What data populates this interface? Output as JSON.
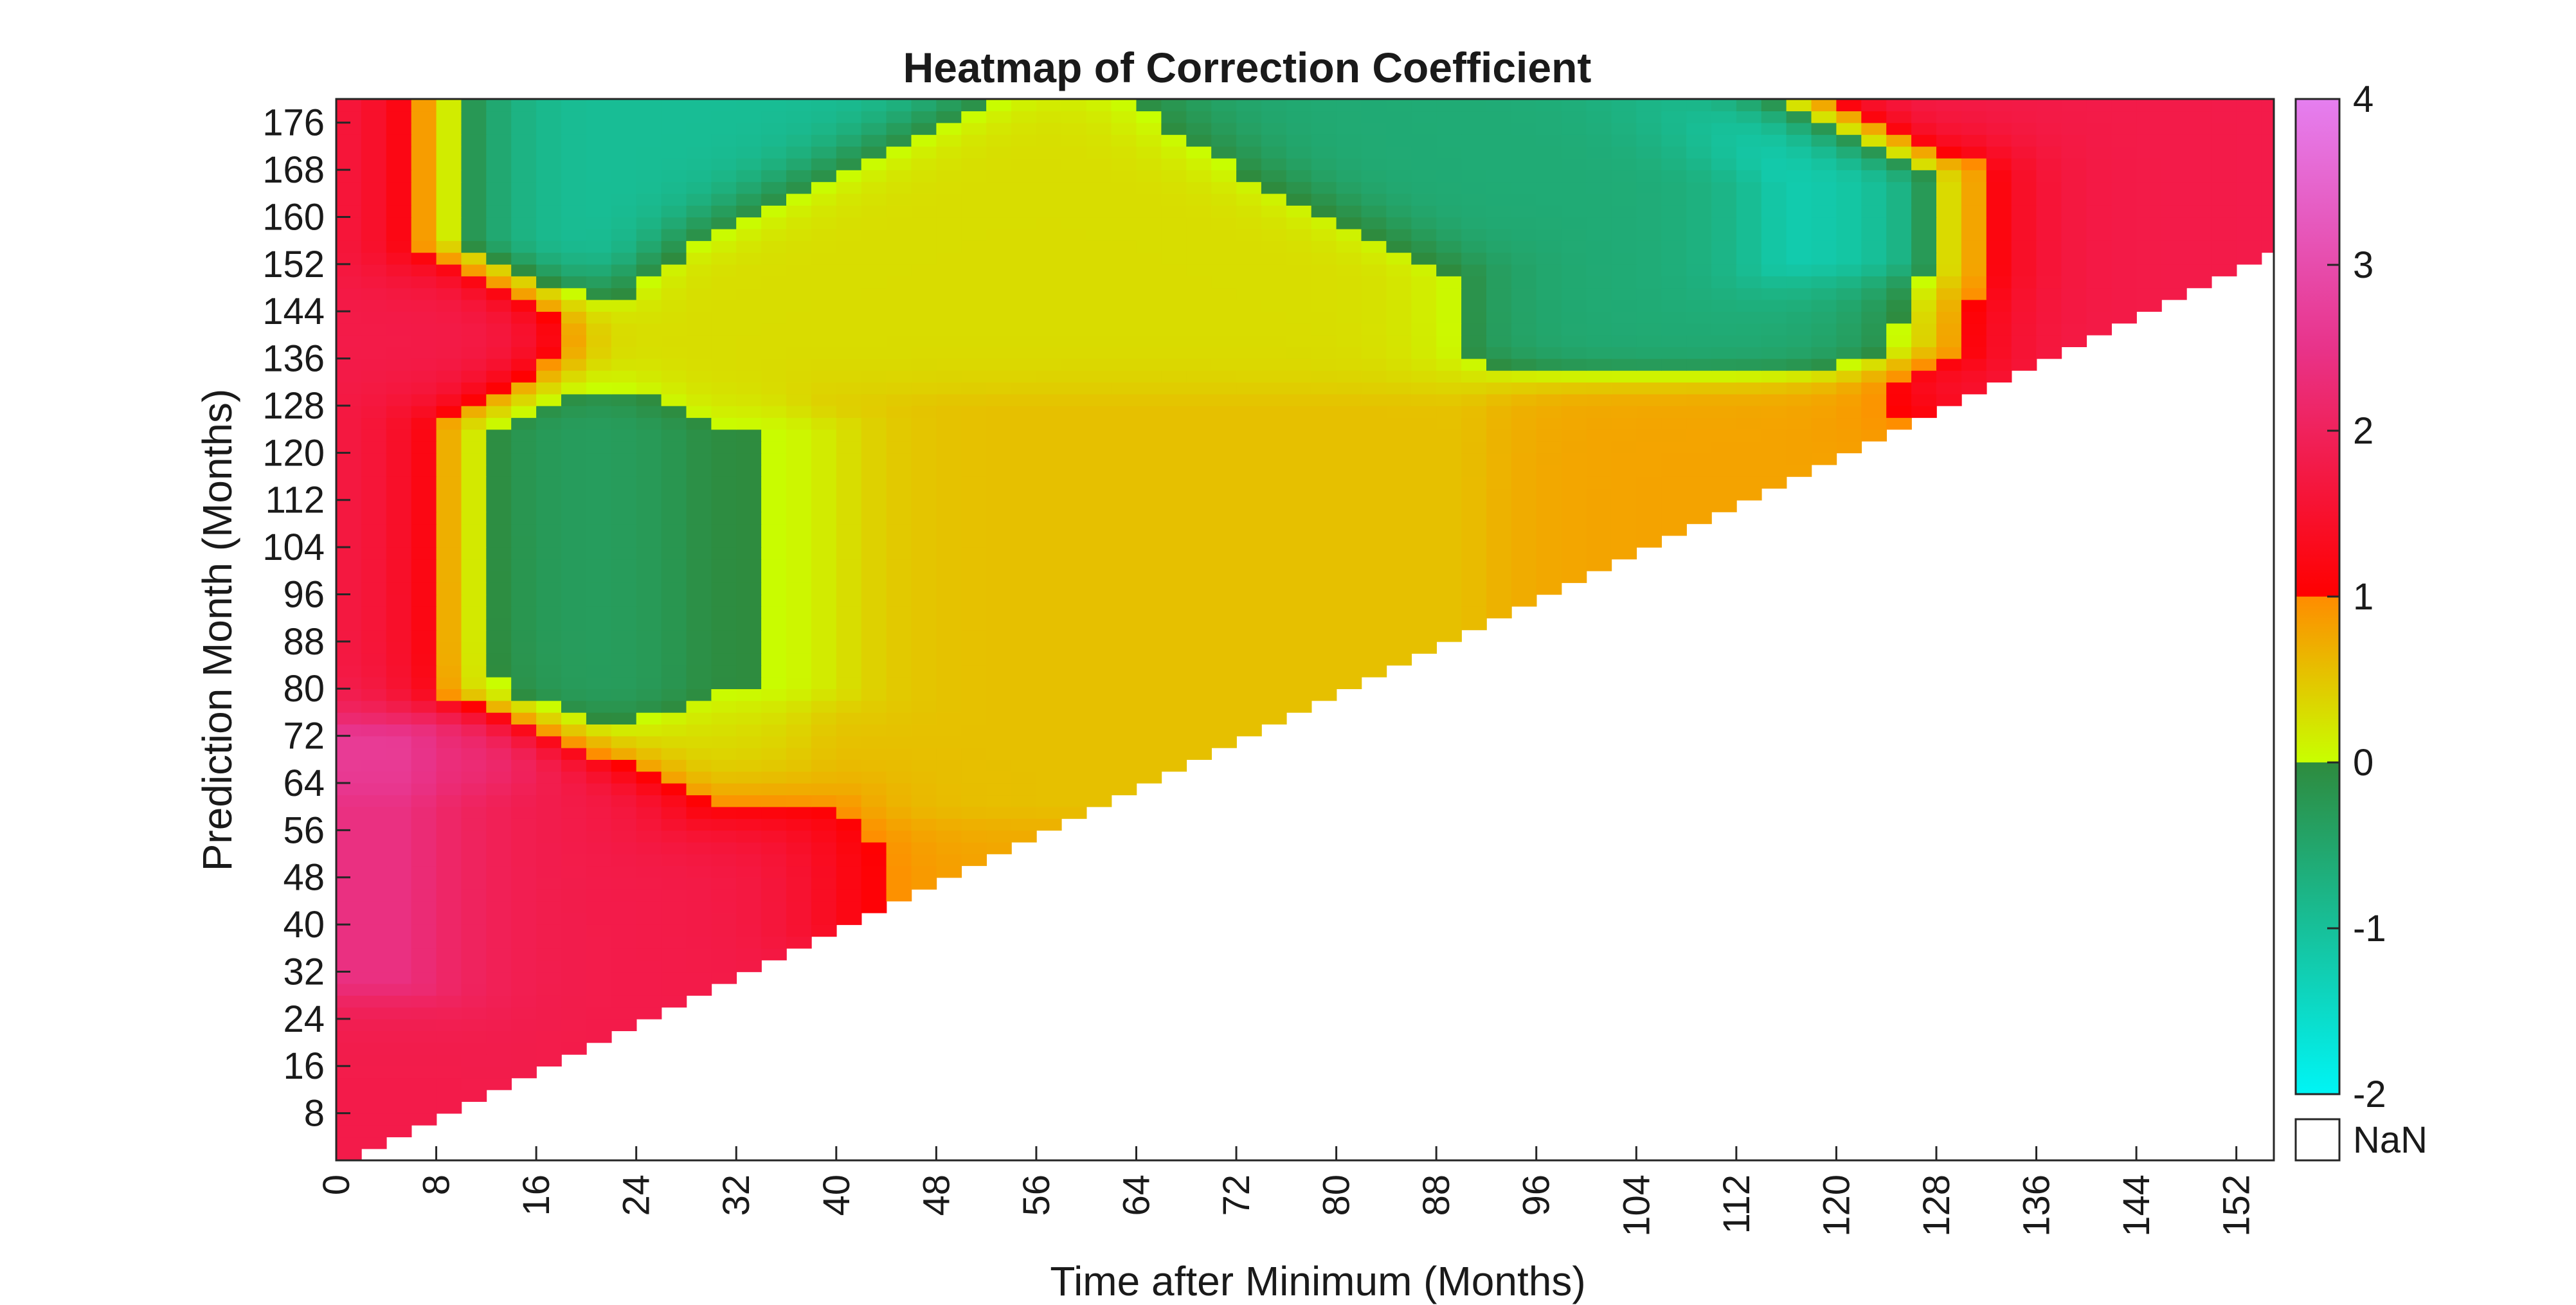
{
  "chart_data": {
    "type": "heatmap",
    "title": "Heatmap of Correction Coefficient",
    "xlabel": "Time after Minimum (Months)",
    "ylabel": "Prediction Month (Months)",
    "xlim": [
      0,
      155
    ],
    "ylim": [
      0,
      180
    ],
    "x_ticks": [
      0,
      8,
      16,
      24,
      32,
      40,
      48,
      56,
      64,
      72,
      80,
      88,
      96,
      104,
      112,
      120,
      128,
      136,
      144,
      152
    ],
    "y_ticks": [
      8,
      16,
      24,
      32,
      40,
      48,
      56,
      64,
      72,
      80,
      88,
      96,
      104,
      112,
      120,
      128,
      136,
      144,
      152,
      160,
      168,
      176
    ],
    "valid_region": "cells with x <= y (upper-left triangle); lower-right is NaN",
    "colorbar": {
      "min": -2,
      "max": 4,
      "ticks": [
        -2,
        -1,
        0,
        1,
        2,
        3,
        4
      ],
      "segments": [
        {
          "from": -2,
          "to": 0,
          "colors": [
            "#00f5f5",
            "#2e8b3e"
          ]
        },
        {
          "from": 0,
          "to": 1,
          "colors": [
            "#c8ff00",
            "#ff8c00"
          ]
        },
        {
          "from": 1,
          "to": 4,
          "colors": [
            "#ff0000",
            "#e8338a",
            "#e57ff0"
          ]
        }
      ],
      "nan_label": "NaN",
      "nan_color": "#ffffff"
    },
    "regions": [
      {
        "name": "low-x band",
        "x": [
          0,
          8
        ],
        "y": [
          0,
          180
        ],
        "approx_value": 1.8
      },
      {
        "name": "magenta peak",
        "x": [
          0,
          6
        ],
        "y": [
          30,
          72
        ],
        "approx_value": 3.6
      },
      {
        "name": "bottom red wedge",
        "x": [
          0,
          40
        ],
        "y": [
          20,
          60
        ],
        "approx_value": 1.8
      },
      {
        "name": "green blob A",
        "x": [
          10,
          40
        ],
        "y": [
          80,
          124
        ],
        "approx_value": -0.4
      },
      {
        "name": "green blob B",
        "x": [
          92,
          128
        ],
        "y": [
          138,
          166
        ],
        "approx_value": -0.6
      },
      {
        "name": "cyan core",
        "x": [
          116,
          126
        ],
        "y": [
          152,
          166
        ],
        "approx_value": -1.9
      },
      {
        "name": "top-left cyan patch",
        "x": [
          9,
          20
        ],
        "y": [
          156,
          180
        ],
        "approx_value": -1.0
      },
      {
        "name": "yellow bulk",
        "x": [
          30,
          90
        ],
        "y": [
          60,
          150
        ],
        "approx_value": 0.3
      },
      {
        "name": "orange diagonal edge",
        "x": [
          40,
          128
        ],
        "y": [
          40,
          128
        ],
        "approx_value": 0.8
      },
      {
        "name": "right red strip",
        "x": [
          128,
          155
        ],
        "y": [
          128,
          180
        ],
        "approx_value": 1.8
      }
    ]
  }
}
